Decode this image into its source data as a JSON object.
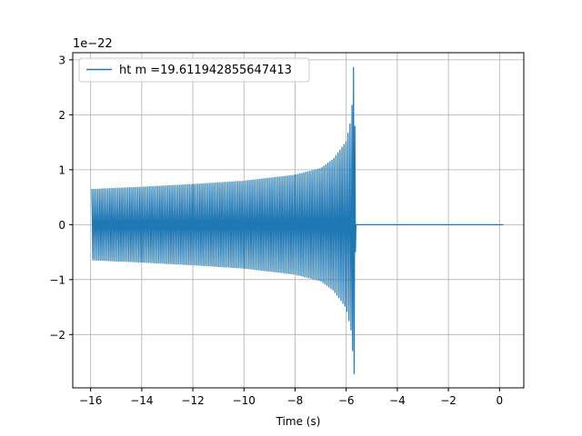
{
  "chart_data": {
    "type": "line",
    "title": "",
    "xlabel": "Time (s)",
    "ylabel": "",
    "y_offset_label": "1e−22",
    "xlim": [
      -16.7,
      0.95
    ],
    "ylim": [
      -2.97,
      3.13
    ],
    "x_ticks": [
      -16,
      -14,
      -12,
      -10,
      -8,
      -6,
      -4,
      -2,
      0
    ],
    "x_tick_labels": [
      "−16",
      "−14",
      "−12",
      "−10",
      "−8",
      "−6",
      "−4",
      "−2",
      "0"
    ],
    "y_ticks": [
      -2,
      -1,
      0,
      1,
      2,
      3
    ],
    "y_tick_labels": [
      "−2",
      "−1",
      "0",
      "1",
      "2",
      "3"
    ],
    "grid": true,
    "legend_position": "upper-left",
    "series": [
      {
        "name": "ht m =19.611942855647413",
        "color": "#1f77b4",
        "chirp_start_time": -15.95,
        "merger_time": -5.66,
        "end_time": 0.15,
        "envelope": [
          {
            "t": -15.95,
            "amp": 0.65
          },
          {
            "t": -14.0,
            "amp": 0.69
          },
          {
            "t": -12.0,
            "amp": 0.74
          },
          {
            "t": -10.0,
            "amp": 0.8
          },
          {
            "t": -8.0,
            "amp": 0.91
          },
          {
            "t": -7.0,
            "amp": 1.03
          },
          {
            "t": -6.5,
            "amp": 1.2
          },
          {
            "t": -6.0,
            "amp": 1.52
          },
          {
            "t": -5.8,
            "amp": 1.95
          },
          {
            "t": -5.7,
            "amp": 2.8
          },
          {
            "t": -5.66,
            "amp": 2.85
          }
        ],
        "peak_max": 2.87,
        "peak_min": -2.72,
        "post_merger_value": 0.0
      }
    ]
  }
}
